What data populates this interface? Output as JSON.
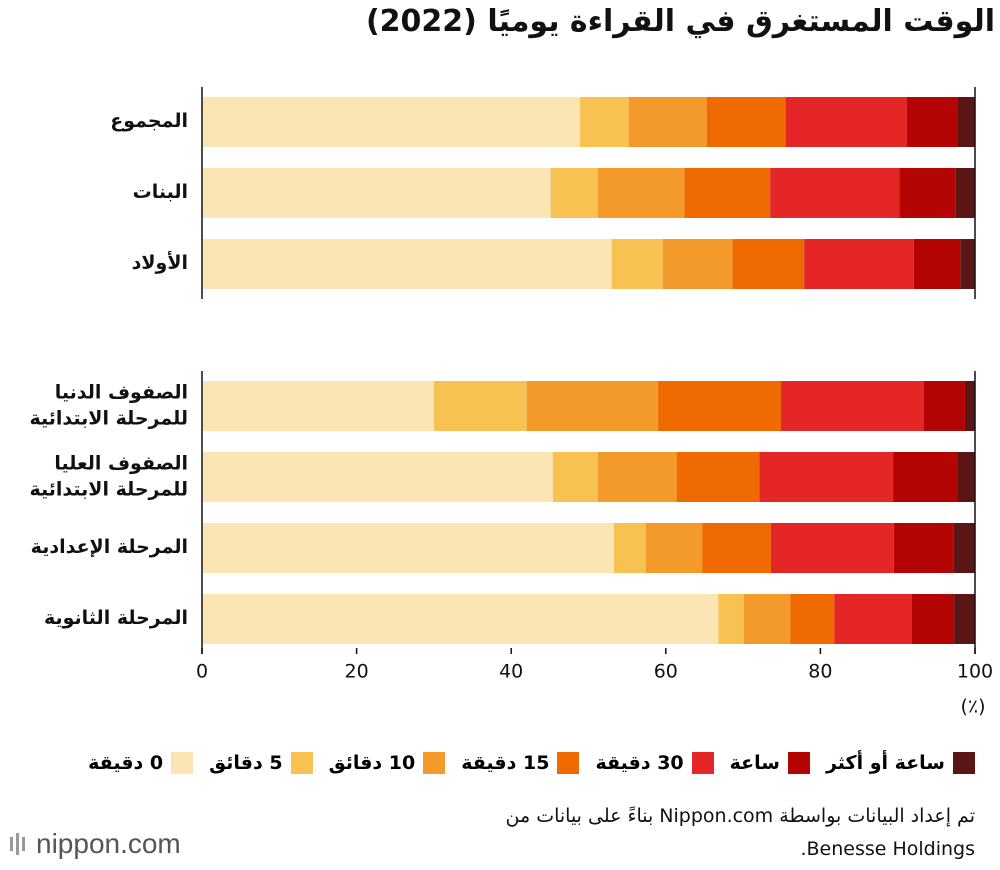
{
  "chart_data": {
    "type": "stacked-bar",
    "orientation": "horizontal",
    "title": "الوقت المستغرق في القراءة يوميًا (2022)",
    "categories": [
      "المجموع",
      "البنات",
      "الأولاد",
      "الصفوف الدنيا\nللمرحلة الابتدائية",
      "الصفوف العليا\nللمرحلة الابتدائية",
      "المرحلة الإعدادية",
      "المرحلة الثانوية"
    ],
    "series": [
      {
        "name": "0 دقيقة",
        "color": "#fce5b5",
        "values": [
          48.9,
          45.1,
          53.0,
          30.0,
          45.4,
          53.3,
          66.8
        ]
      },
      {
        "name": "5 دقائق",
        "color": "#f8c253",
        "values": [
          6.3,
          6.1,
          6.6,
          12.0,
          5.8,
          4.1,
          3.3
        ]
      },
      {
        "name": "10 دقائق",
        "color": "#f39a2a",
        "values": [
          10.1,
          11.2,
          9.0,
          17.0,
          10.2,
          7.3,
          6.0
        ]
      },
      {
        "name": "15 دقيقة",
        "color": "#ef6a00",
        "values": [
          10.2,
          11.1,
          9.3,
          15.9,
          10.7,
          8.9,
          5.7
        ]
      },
      {
        "name": "30 دقيقة",
        "color": "#e52627",
        "values": [
          15.7,
          16.7,
          14.2,
          18.5,
          17.3,
          15.9,
          10.0
        ]
      },
      {
        "name": "ساعة",
        "color": "#b50404",
        "values": [
          6.6,
          7.3,
          6.0,
          5.3,
          8.4,
          7.7,
          5.5
        ]
      },
      {
        "name": "ساعة أو أكثر",
        "color": "#5a1616",
        "values": [
          2.2,
          2.5,
          1.9,
          1.3,
          2.2,
          2.8,
          2.7
        ]
      }
    ],
    "xlim": [
      0,
      100
    ],
    "xticks": [
      0,
      20,
      40,
      60,
      80,
      100
    ],
    "xlabel": "(٪)",
    "grid": false,
    "legend": "bottom"
  },
  "source": [
    "تم إعداد البيانات بواسطة Nippon.com بناءً على بيانات من",
    "Benesse Holdings."
  ],
  "logo": "nippon.com"
}
